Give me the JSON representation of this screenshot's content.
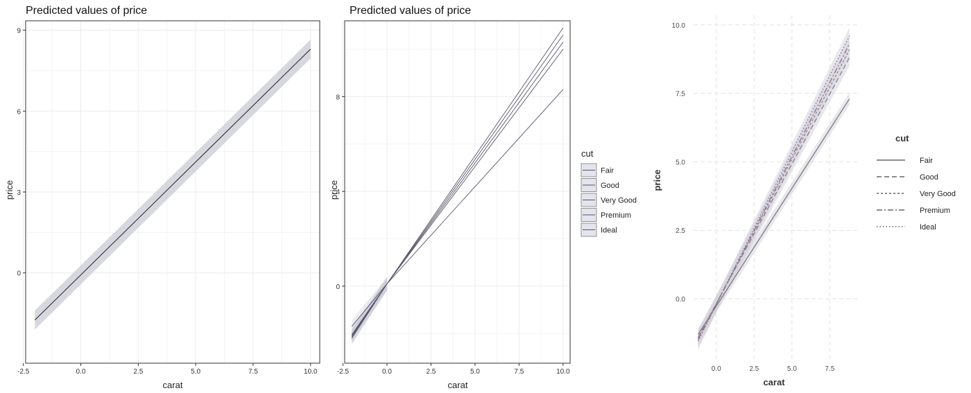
{
  "colors": {
    "ribbon": "#c9c9d6",
    "line": "#222222",
    "grid": "#ececec",
    "grid3": "#e2e2e2",
    "panel_border": "#333333"
  },
  "chart_data": [
    {
      "type": "line",
      "title": "Predicted values of price",
      "xlabel": "carat",
      "ylabel": "price",
      "xlim": [
        -2.4,
        10.4
      ],
      "ylim": [
        -3.35,
        9.35
      ],
      "xticks": [
        "-2.5",
        "0.0",
        "2.5",
        "5.0",
        "7.5",
        "10.0"
      ],
      "yticks": [
        "0",
        "3",
        "6",
        "9"
      ],
      "grid": true,
      "series": [
        {
          "x": [
            -2,
            10
          ],
          "y": [
            -1.75,
            8.3
          ],
          "ci_halfwidth": 0.35
        }
      ]
    },
    {
      "type": "line",
      "title": "Predicted values of price",
      "xlabel": "carat",
      "ylabel": "price",
      "xlim": [
        -2.4,
        10.4
      ],
      "ylim": [
        -3.25,
        11.2
      ],
      "xticks": [
        "-2.5",
        "0.0",
        "2.5",
        "5.0",
        "7.5",
        "10.0"
      ],
      "yticks": [
        "0",
        "4",
        "8"
      ],
      "grid": true,
      "legend": {
        "title": "cut",
        "position": "right",
        "entries": [
          "Fair",
          "Good",
          "Very Good",
          "Premium",
          "Ideal"
        ]
      },
      "series": [
        {
          "name": "Fair",
          "x": [
            -2,
            0,
            10
          ],
          "y": [
            -1.7,
            0.1,
            8.3
          ]
        },
        {
          "name": "Good",
          "x": [
            -2,
            0,
            10
          ],
          "y": [
            -2.05,
            0.1,
            10.0
          ]
        },
        {
          "name": "Very Good",
          "x": [
            -2,
            0,
            10
          ],
          "y": [
            -2.1,
            0.1,
            10.3
          ]
        },
        {
          "name": "Premium",
          "x": [
            -2,
            0,
            10
          ],
          "y": [
            -2.15,
            0.1,
            10.6
          ]
        },
        {
          "name": "Ideal",
          "x": [
            -2,
            0,
            10
          ],
          "y": [
            -2.2,
            0.1,
            10.9
          ]
        }
      ]
    },
    {
      "type": "line",
      "title": "",
      "xlabel": "carat",
      "ylabel": "price",
      "xlim": [
        -1.5,
        9.5
      ],
      "ylim": [
        -2.2,
        10.35
      ],
      "xticks": [
        "0.0",
        "2.5",
        "5.0",
        "7.5"
      ],
      "yticks": [
        "0.0",
        "2.5",
        "5.0",
        "7.5",
        "10.0"
      ],
      "grid": true,
      "legend": {
        "title": "cut",
        "position": "right",
        "entries": [
          "Fair",
          "Good",
          "Very Good",
          "Premium",
          "Ideal"
        ]
      },
      "series": [
        {
          "name": "Fair",
          "x": [
            -1.2,
            8.8
          ],
          "y": [
            -1.3,
            7.3
          ]
        },
        {
          "name": "Good",
          "x": [
            -1.2,
            8.8
          ],
          "y": [
            -1.4,
            8.8
          ]
        },
        {
          "name": "Very Good",
          "x": [
            -1.2,
            8.8
          ],
          "y": [
            -1.45,
            9.1
          ]
        },
        {
          "name": "Premium",
          "x": [
            -1.2,
            8.8
          ],
          "y": [
            -1.5,
            9.3
          ]
        },
        {
          "name": "Ideal",
          "x": [
            -1.2,
            8.8
          ],
          "y": [
            -1.55,
            9.6
          ]
        }
      ]
    }
  ]
}
